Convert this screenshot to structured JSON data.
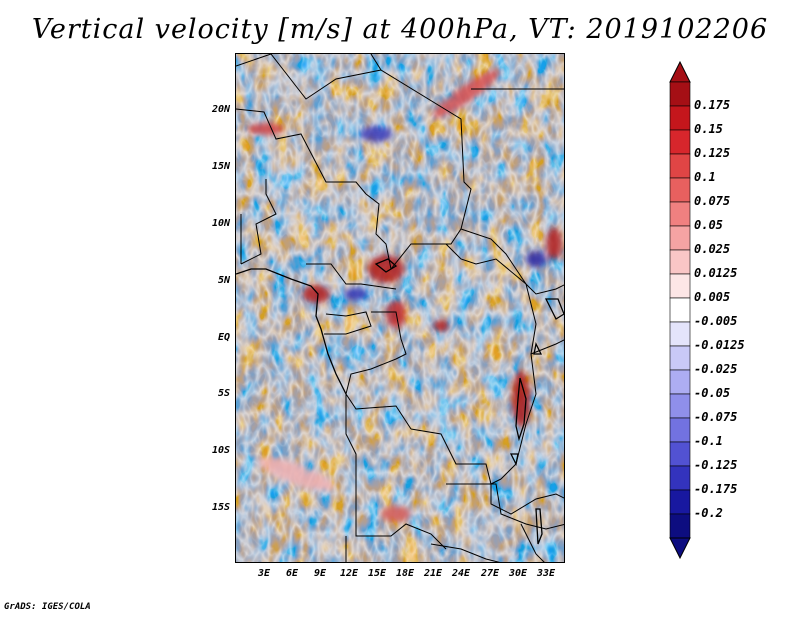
{
  "title": "Vertical velocity [m/s] at 400hPa, VT: 2019102206",
  "latitude_labels": [
    "20N",
    "15N",
    "10N",
    "5N",
    "EQ",
    "5S",
    "10S",
    "15S"
  ],
  "longitude_labels": [
    "3E",
    "6E",
    "9E",
    "12E",
    "15E",
    "18E",
    "21E",
    "24E",
    "27E",
    "30E",
    "33E"
  ],
  "colorbar": {
    "labels": [
      "0.175",
      "0.15",
      "0.125",
      "0.1",
      "0.075",
      "0.05",
      "0.025",
      "0.0125",
      "0.005",
      "-0.005",
      "-0.0125",
      "-0.025",
      "-0.05",
      "-0.075",
      "-0.1",
      "-0.125",
      "-0.175",
      "-0.2"
    ],
    "colors": [
      "#a50f15",
      "#c4161c",
      "#d7262c",
      "#e04545",
      "#e8605f",
      "#f08080",
      "#f5a3a3",
      "#fac6c6",
      "#fde6e6",
      "#ffffff",
      "#e4e4fb",
      "#c9c9f7",
      "#adadf2",
      "#8f8fea",
      "#7272e0",
      "#5252d2",
      "#3333bd",
      "#1818a0",
      "#0d0d80"
    ]
  },
  "credit": "GrADS: IGES/COLA",
  "chart_data": {
    "type": "heatmap",
    "variable": "Vertical velocity",
    "units": "m/s",
    "level": "400hPa",
    "valid_time": "2019102206",
    "lat_range": [
      "19S",
      "24N"
    ],
    "lon_range": [
      "0E",
      "35E"
    ],
    "levels": [
      -0.2,
      -0.175,
      -0.125,
      -0.1,
      -0.075,
      -0.05,
      -0.025,
      -0.0125,
      -0.005,
      0.005,
      0.0125,
      0.025,
      0.05,
      0.075,
      0.1,
      0.125,
      0.15,
      0.175
    ]
  }
}
